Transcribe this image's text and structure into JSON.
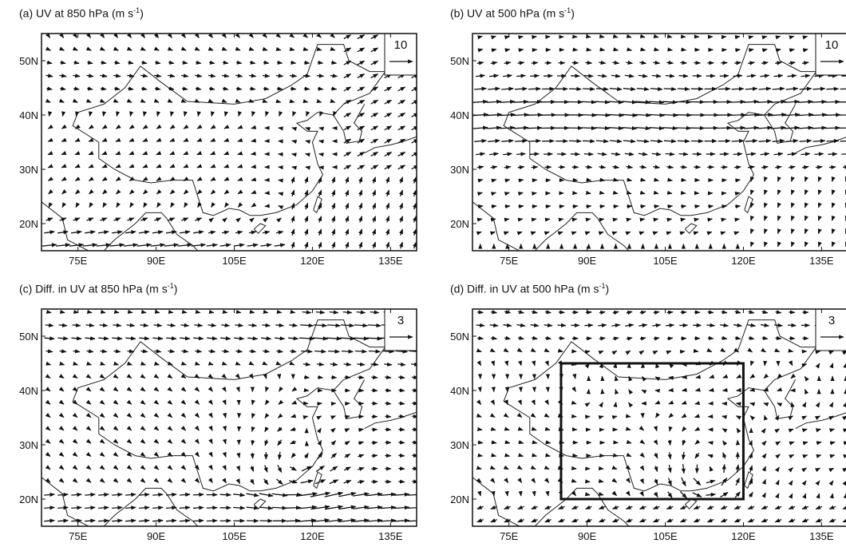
{
  "panels": [
    {
      "id": "a",
      "title": "(a) UV at 850 hPa (m s",
      "title_sup": "-1",
      "title_tail": ")",
      "ref_vector": "10",
      "box": false
    },
    {
      "id": "b",
      "title": "(b) UV at 500 hPa (m s",
      "title_sup": "-1",
      "title_tail": ")",
      "ref_vector": "10",
      "box": false
    },
    {
      "id": "c",
      "title": "(c) Diff. in UV at 850 hPa (m s",
      "title_sup": "-1",
      "title_tail": ")",
      "ref_vector": "3",
      "box": false
    },
    {
      "id": "d",
      "title": "(d) Diff. in UV at 500 hPa (m s",
      "title_sup": "-1",
      "title_tail": ")",
      "ref_vector": "3",
      "box": true
    }
  ],
  "axes": {
    "lon_ticks": [
      "75E",
      "90E",
      "105E",
      "120E",
      "135E"
    ],
    "lat_ticks": [
      "50N",
      "40N",
      "30N",
      "20N"
    ],
    "lon_range": [
      68,
      140
    ],
    "lat_range": [
      15,
      55
    ]
  },
  "region_box": {
    "lon": [
      85,
      120
    ],
    "lat": [
      20,
      45
    ]
  },
  "colors": {
    "arrow": "#111111",
    "coast": "#222222",
    "frame": "#111111"
  }
}
